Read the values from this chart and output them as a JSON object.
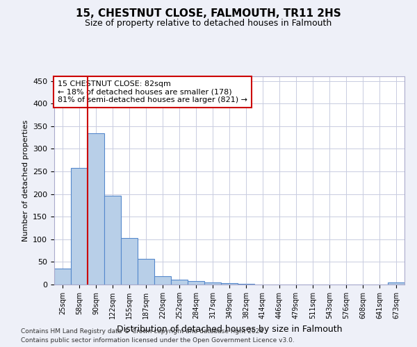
{
  "title1": "15, CHESTNUT CLOSE, FALMOUTH, TR11 2HS",
  "title2": "Size of property relative to detached houses in Falmouth",
  "xlabel": "Distribution of detached houses by size in Falmouth",
  "ylabel": "Number of detached properties",
  "footnote1": "Contains HM Land Registry data © Crown copyright and database right 2024.",
  "footnote2": "Contains public sector information licensed under the Open Government Licence v3.0.",
  "bin_labels": [
    "25sqm",
    "58sqm",
    "90sqm",
    "122sqm",
    "155sqm",
    "187sqm",
    "220sqm",
    "252sqm",
    "284sqm",
    "317sqm",
    "349sqm",
    "382sqm",
    "414sqm",
    "446sqm",
    "479sqm",
    "511sqm",
    "543sqm",
    "576sqm",
    "608sqm",
    "641sqm",
    "673sqm"
  ],
  "bar_values": [
    35,
    257,
    335,
    197,
    103,
    57,
    19,
    10,
    7,
    5,
    3,
    1,
    0,
    0,
    0,
    0,
    0,
    0,
    0,
    0,
    4
  ],
  "bar_color": "#b8cfe8",
  "bar_edge_color": "#5588cc",
  "vline_color": "#cc0000",
  "vline_pos": 1.5,
  "annotation_text": "15 CHESTNUT CLOSE: 82sqm\n← 18% of detached houses are smaller (178)\n81% of semi-detached houses are larger (821) →",
  "annotation_box_color": "white",
  "annotation_box_edge_color": "#cc0000",
  "ylim": [
    0,
    460
  ],
  "yticks": [
    0,
    50,
    100,
    150,
    200,
    250,
    300,
    350,
    400,
    450
  ],
  "bg_color": "#eef0f8",
  "plot_bg_color": "#ffffff",
  "grid_color": "#c8cce0",
  "title1_fontsize": 11,
  "title2_fontsize": 9,
  "xlabel_fontsize": 9,
  "ylabel_fontsize": 8,
  "tick_fontsize": 8,
  "annot_fontsize": 8
}
